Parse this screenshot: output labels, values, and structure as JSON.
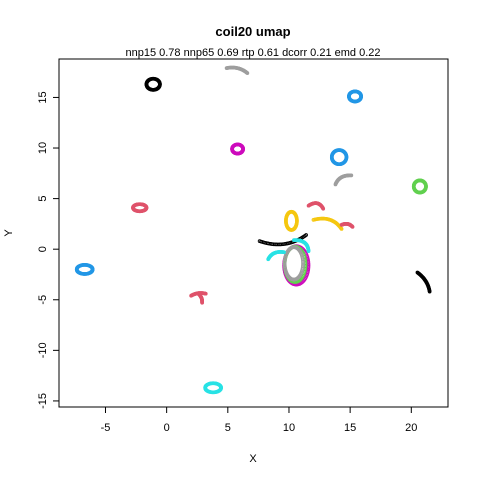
{
  "chart_data": {
    "type": "scatter",
    "title": "coil20 umap",
    "subtitle": "nnp15 0.78 nnp65 0.69 rtp 0.61 dcorr 0.21 emd 0.22",
    "xlabel": "X",
    "ylabel": "Y",
    "xlim": [
      -8.8,
      23.0
    ],
    "ylim": [
      -15.6,
      18.8
    ],
    "x_ticks": [
      -5,
      0,
      5,
      10,
      15,
      20
    ],
    "y_ticks": [
      -15,
      -10,
      -5,
      0,
      5,
      10,
      15
    ],
    "x_tick_labels": [
      "-5",
      "0",
      "5",
      "10",
      "15",
      "20"
    ],
    "y_tick_labels": [
      "-15",
      "-10",
      "-5",
      "0",
      "5",
      "10",
      "15"
    ],
    "grid": false,
    "legend": "none",
    "marker": "open-circle",
    "clusters": [
      {
        "shape": "ring",
        "cx": -1.1,
        "cy": 16.3,
        "rx": 0.55,
        "ry": 0.55,
        "color": "#000000"
      },
      {
        "shape": "arc",
        "x0": 4.9,
        "y0": 17.9,
        "x1": 6.6,
        "y1": 17.4,
        "bend": 0.25,
        "color": "#9e9e9e"
      },
      {
        "shape": "ring",
        "cx": 15.4,
        "cy": 15.1,
        "rx": 0.5,
        "ry": 0.5,
        "color": "#2297e6"
      },
      {
        "shape": "ring",
        "cx": 5.8,
        "cy": 9.9,
        "rx": 0.45,
        "ry": 0.45,
        "color": "#cd0bbc"
      },
      {
        "shape": "ring",
        "cx": 14.1,
        "cy": 9.1,
        "rx": 0.6,
        "ry": 0.7,
        "color": "#2297e6"
      },
      {
        "shape": "arc",
        "x0": 13.8,
        "y0": 6.4,
        "x1": 15.1,
        "y1": 7.3,
        "bend": 0.3,
        "color": "#9e9e9e"
      },
      {
        "shape": "ring",
        "cx": 20.7,
        "cy": 6.2,
        "rx": 0.5,
        "ry": 0.6,
        "color": "#61d04f"
      },
      {
        "shape": "ring",
        "cx": -2.2,
        "cy": 4.1,
        "rx": 0.55,
        "ry": 0.35,
        "color": "#df536b"
      },
      {
        "shape": "arc",
        "x0": 11.6,
        "y0": 4.3,
        "x1": 12.8,
        "y1": 4.0,
        "bend": 0.4,
        "color": "#df536b"
      },
      {
        "shape": "ring",
        "cx": 10.2,
        "cy": 2.8,
        "rx": 0.45,
        "ry": 0.9,
        "color": "#f5c710"
      },
      {
        "shape": "arc",
        "x0": 12.0,
        "y0": 2.9,
        "x1": 14.3,
        "y1": 2.0,
        "bend": 0.5,
        "color": "#f5c710"
      },
      {
        "shape": "arc",
        "x0": 14.3,
        "y0": 2.4,
        "x1": 15.2,
        "y1": 2.2,
        "bend": 0.2,
        "color": "#df536b"
      },
      {
        "shape": "arc",
        "x0": 7.6,
        "y0": 0.8,
        "x1": 11.4,
        "y1": 1.4,
        "bend": -0.6,
        "color": "#000000"
      },
      {
        "shape": "ring",
        "cx": 10.6,
        "cy": -1.6,
        "rx": 1.0,
        "ry": 1.9,
        "color": "#cd0bbc"
      },
      {
        "shape": "ring",
        "cx": 10.5,
        "cy": -1.5,
        "rx": 0.85,
        "ry": 1.75,
        "color": "#61d04f"
      },
      {
        "shape": "ring",
        "cx": 10.4,
        "cy": -1.4,
        "rx": 0.75,
        "ry": 1.6,
        "color": "#9e9e9e"
      },
      {
        "shape": "arc",
        "x0": 8.3,
        "y0": -1.0,
        "x1": 9.6,
        "y1": -0.3,
        "bend": 0.3,
        "color": "#28e2e5"
      },
      {
        "shape": "arc",
        "x0": 10.4,
        "y0": 0.9,
        "x1": 11.6,
        "y1": -0.2,
        "bend": 0.4,
        "color": "#28e2e5"
      },
      {
        "shape": "ring",
        "cx": -6.7,
        "cy": -2.0,
        "rx": 0.65,
        "ry": 0.45,
        "color": "#2297e6"
      },
      {
        "shape": "arc",
        "x0": 20.5,
        "y0": -2.3,
        "x1": 21.5,
        "y1": -4.2,
        "bend": 0.2,
        "color": "#000000"
      },
      {
        "shape": "arc",
        "x0": 2.0,
        "y0": -4.6,
        "x1": 3.2,
        "y1": -4.4,
        "bend": 0.15,
        "color": "#df536b"
      },
      {
        "shape": "arc",
        "x0": 2.6,
        "y0": -4.4,
        "x1": 2.9,
        "y1": -5.3,
        "bend": 0.1,
        "color": "#df536b"
      },
      {
        "shape": "ring",
        "cx": 3.8,
        "cy": -13.7,
        "rx": 0.65,
        "ry": 0.45,
        "color": "#28e2e5"
      }
    ]
  }
}
